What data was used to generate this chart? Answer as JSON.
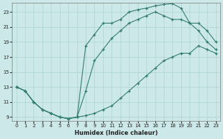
{
  "xlabel": "Humidex (Indice chaleur)",
  "bg_color": "#cde8e8",
  "line_color": "#2e7b6e",
  "grid_color": "#aad0d0",
  "xlim": [
    -0.5,
    23.5
  ],
  "ylim": [
    8.5,
    24.2
  ],
  "xticks": [
    0,
    1,
    2,
    3,
    4,
    5,
    6,
    7,
    8,
    9,
    10,
    11,
    12,
    13,
    14,
    15,
    16,
    17,
    18,
    19,
    20,
    21,
    22,
    23
  ],
  "yticks": [
    9,
    11,
    13,
    15,
    17,
    19,
    21,
    23
  ],
  "curve_top_x": [
    0,
    1,
    2,
    3,
    4,
    5,
    6,
    7,
    8,
    9,
    10,
    11,
    12,
    13,
    14,
    15,
    16,
    17,
    18,
    19,
    20,
    21,
    22,
    23
  ],
  "curve_top_y": [
    13.0,
    12.5,
    11.0,
    10.0,
    9.5,
    9.0,
    8.8,
    9.0,
    18.5,
    20.0,
    21.5,
    21.5,
    22.0,
    23.0,
    23.3,
    23.5,
    23.8,
    24.0,
    24.1,
    23.5,
    21.5,
    20.5,
    19.0,
    18.0
  ],
  "curve_mid_x": [
    0,
    1,
    2,
    3,
    4,
    5,
    6,
    7,
    8,
    9,
    10,
    11,
    12,
    13,
    14,
    15,
    16,
    17,
    18,
    19,
    20,
    21,
    22,
    23
  ],
  "curve_mid_y": [
    13.0,
    12.5,
    11.0,
    10.0,
    9.5,
    9.0,
    8.8,
    9.0,
    12.5,
    16.5,
    18.0,
    19.5,
    20.5,
    21.5,
    22.0,
    22.5,
    23.0,
    22.5,
    22.0,
    22.0,
    21.5,
    21.5,
    20.5,
    19.0
  ],
  "curve_bot_x": [
    0,
    1,
    2,
    3,
    4,
    5,
    6,
    7,
    8,
    9,
    10,
    11,
    12,
    13,
    14,
    15,
    16,
    17,
    18,
    19,
    20,
    21,
    22,
    23
  ],
  "curve_bot_y": [
    13.0,
    12.5,
    11.0,
    10.0,
    9.5,
    9.0,
    8.8,
    9.0,
    9.2,
    9.5,
    10.0,
    10.5,
    11.5,
    12.5,
    13.5,
    14.5,
    15.5,
    16.5,
    17.0,
    17.5,
    17.5,
    18.5,
    18.0,
    17.5
  ]
}
